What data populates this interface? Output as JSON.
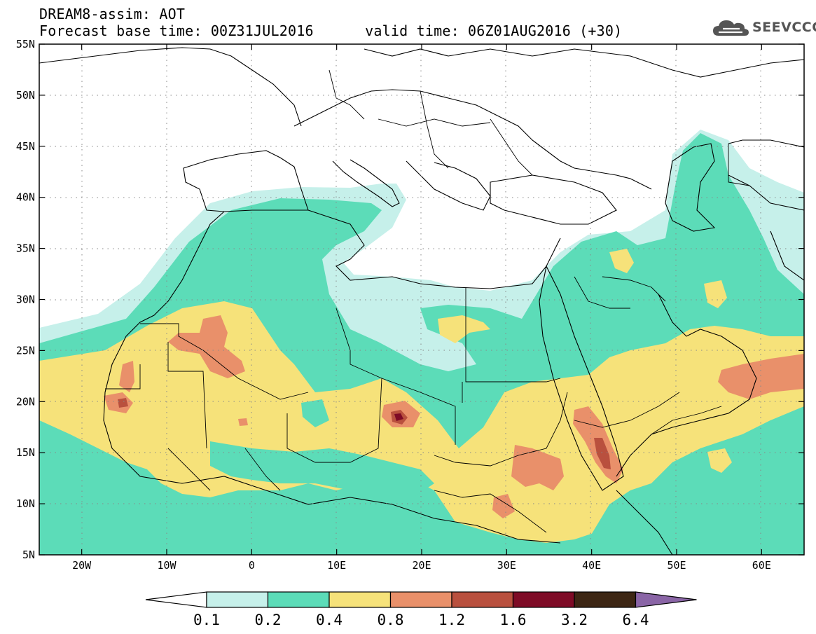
{
  "header": {
    "model_line": "DREAM8-assim: AOT",
    "forecast_line": "Forecast base time: 00Z31JUL2016      valid time: 06Z01AUG2016 (+30)"
  },
  "logo": {
    "text": "SEEVCCC",
    "icon": "cloud-icon",
    "color": "#555555"
  },
  "map": {
    "lon_range": [
      -25,
      65
    ],
    "lat_range": [
      5,
      55
    ],
    "lon_ticks": [
      {
        "value": -20,
        "label": "20W"
      },
      {
        "value": -10,
        "label": "10W"
      },
      {
        "value": 0,
        "label": "0"
      },
      {
        "value": 10,
        "label": "10E"
      },
      {
        "value": 20,
        "label": "20E"
      },
      {
        "value": 30,
        "label": "30E"
      },
      {
        "value": 40,
        "label": "40E"
      },
      {
        "value": 50,
        "label": "50E"
      },
      {
        "value": 60,
        "label": "60E"
      }
    ],
    "lat_ticks": [
      {
        "value": 55,
        "label": "55N"
      },
      {
        "value": 50,
        "label": "50N"
      },
      {
        "value": 45,
        "label": "45N"
      },
      {
        "value": 40,
        "label": "40N"
      },
      {
        "value": 35,
        "label": "35N"
      },
      {
        "value": 30,
        "label": "30N"
      },
      {
        "value": 25,
        "label": "25N"
      },
      {
        "value": 20,
        "label": "20N"
      },
      {
        "value": 15,
        "label": "15N"
      },
      {
        "value": 10,
        "label": "10N"
      },
      {
        "value": 5,
        "label": "5N"
      }
    ],
    "gridlines": "dotted"
  },
  "colorbar": {
    "levels": [
      "0.1",
      "0.2",
      "0.4",
      "0.8",
      "1.2",
      "1.6",
      "3.2",
      "6.4"
    ],
    "below_color": "#ffffff",
    "colors": [
      "#c6f0ea",
      "#5cdcb8",
      "#f6e27a",
      "#e9906a",
      "#b9503e",
      "#7e0b26",
      "#3d2614"
    ],
    "above_color": "#8a65a6"
  }
}
